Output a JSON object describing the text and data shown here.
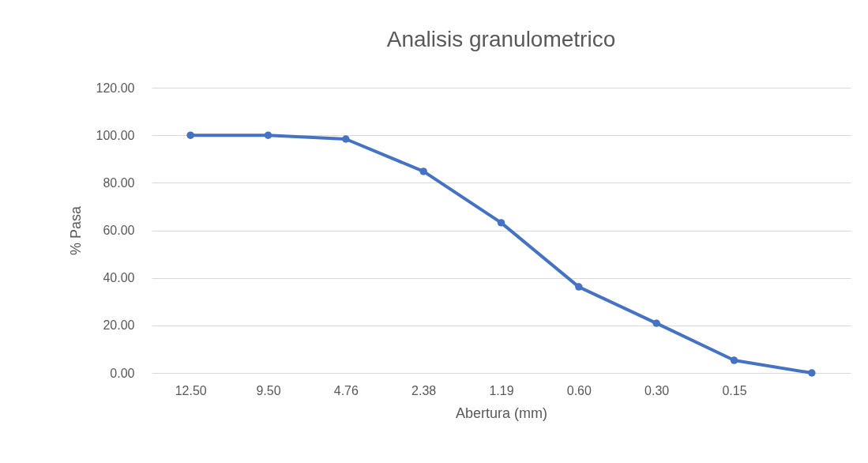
{
  "chart_data": {
    "type": "line",
    "title": "Analisis granulometrico",
    "xlabel": "Abertura (mm)",
    "ylabel": "% Pasa",
    "categories": [
      "12.50",
      "9.50",
      "4.76",
      "2.38",
      "1.19",
      "0.60",
      "0.30",
      "0.15",
      null
    ],
    "series": [
      {
        "color": "#4472c4",
        "values": [
          100,
          100,
          98.4,
          84.8,
          63.2,
          36.2,
          20.9,
          5.3,
          0
        ]
      }
    ],
    "ylim": [
      0,
      120
    ],
    "yticks": [
      {
        "value": 0,
        "label": "0.00"
      },
      {
        "value": 20,
        "label": "20.00"
      },
      {
        "value": 40,
        "label": "40.00"
      },
      {
        "value": 60,
        "label": "60.00"
      },
      {
        "value": 80,
        "label": "80.00"
      },
      {
        "value": 100,
        "label": "100.00"
      },
      {
        "value": 120,
        "label": "120.00"
      }
    ],
    "grid": "y",
    "marker": "circle",
    "line_style": "solid"
  }
}
